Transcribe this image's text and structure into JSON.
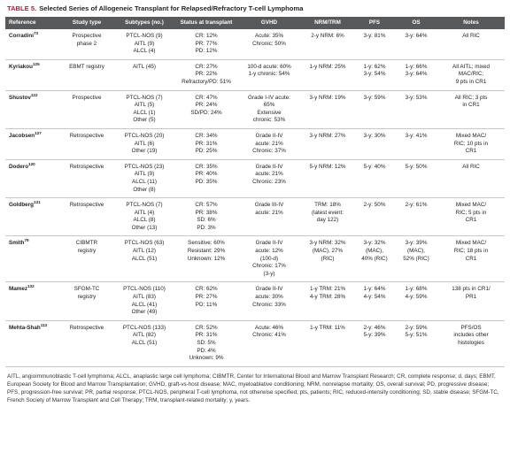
{
  "title": {
    "label": "TABLE 5.",
    "text": "Selected Series of Allogeneic Transplant for Relapsed/Refractory T-cell Lymphoma"
  },
  "table": {
    "columns": [
      "Reference",
      "Study type",
      "Subtypes (no.)",
      "Status at transplant",
      "GVHD",
      "NRM/TRM",
      "PFS",
      "OS",
      "Notes"
    ],
    "rows": [
      [
        {
          "name": "Corradini",
          "ref": "73"
        },
        [
          "Prospective",
          "phase 2"
        ],
        [
          "PTCL-NOS (9)",
          "AITL (9)",
          "ALCL (4)"
        ],
        [
          "CR: 12%",
          "PR: 77%",
          "PD: 12%"
        ],
        [
          "Acute: 35%",
          "Chronic: 50%"
        ],
        [
          "2-y NRM: 6%"
        ],
        [
          "3-y: 81%"
        ],
        [
          "3-y: 64%"
        ],
        [
          "All RIC"
        ]
      ],
      [
        {
          "name": "Kyriakou",
          "ref": "125"
        },
        [
          "EBMT registry"
        ],
        [
          "AITL (45)"
        ],
        [
          "CR: 27%",
          "PR: 22%",
          "Refractory/PD: 51%"
        ],
        [
          "100-d acute: 60%",
          "1-y chronic: 54%"
        ],
        [
          "1-y NRM: 25%"
        ],
        [
          "1-y: 62%",
          "3-y: 54%"
        ],
        [
          "1-y: 66%",
          "3-y: 64%"
        ],
        [
          "All AITL; mixed",
          "MAC/RIC;",
          "9 pts in CR1"
        ]
      ],
      [
        {
          "name": "Shustov",
          "ref": "122"
        },
        [
          "Prospective"
        ],
        [
          "PTCL-NOS (7)",
          "AITL (5)",
          "ALCL (1)",
          "Other (5)"
        ],
        [
          "CR: 47%",
          "PR: 24%",
          "SD/PD: 24%"
        ],
        [
          "Grade I-IV acute:",
          "65%",
          "Extensive",
          "chronic: 53%"
        ],
        [
          "3-y NRM: 19%"
        ],
        [
          "3-y: 59%"
        ],
        [
          "3-y: 53%"
        ],
        [
          "All RIC; 3 pts",
          "in CR1"
        ]
      ],
      [
        {
          "name": "Jacobsen",
          "ref": "127"
        },
        [
          "Retrospective"
        ],
        [
          "PTCL-NOS (20)",
          "AITL (6)",
          "Other (19)"
        ],
        [
          "CR: 34%",
          "PR: 31%",
          "PD: 25%"
        ],
        [
          "Grade II-IV",
          "acute: 21%",
          "Chronic: 37%"
        ],
        [
          "3-y NRM: 27%"
        ],
        [
          "3-y: 30%"
        ],
        [
          "3-y: 41%"
        ],
        [
          "Mixed MAC/",
          "RIC; 10 pts in",
          "CR1"
        ]
      ],
      [
        {
          "name": "Dodero",
          "ref": "120"
        },
        [
          "Retrospective"
        ],
        [
          "PTCL-NOS (23)",
          "AITL (9)",
          "ALCL (11)",
          "Other (8)"
        ],
        [
          "CR: 35%",
          "PR: 40%",
          "PD: 35%"
        ],
        [
          "Grade II-IV",
          "acute: 21%",
          "Chronic: 23%"
        ],
        [
          "5-y NRM: 12%"
        ],
        [
          "5-y: 40%"
        ],
        [
          "5-y: 50%"
        ],
        [
          "All RIC"
        ]
      ],
      [
        {
          "name": "Goldberg",
          "ref": "131"
        },
        [
          "Retrospective"
        ],
        [
          "PTCL-NOS (7)",
          "AITL (4)",
          "ALCL (8)",
          "Other (13)"
        ],
        [
          "CR: 57%",
          "PR: 38%",
          "SD: 6%",
          "PD: 3%"
        ],
        [
          "Grade III-IV",
          "acute: 21%"
        ],
        [
          "TRM: 18%",
          "(latest event:",
          "day 122)"
        ],
        [
          "2-y: 50%"
        ],
        [
          "2-y: 61%"
        ],
        [
          "Mixed MAC/",
          "RIC; 5 pts in",
          "CR1"
        ]
      ],
      [
        {
          "name": "Smith",
          "ref": "79"
        },
        [
          "CIBMTR",
          "registry"
        ],
        [
          "PTCL-NOS (63)",
          "AITL (12)",
          "ALCL (51)"
        ],
        [
          "Sensitive: 60%",
          "Resistant: 29%",
          "Unknown: 12%"
        ],
        [
          "Grade II-IV",
          "acute: 12%",
          "(100-d)",
          "Chronic: 17%",
          "(3-y)"
        ],
        [
          "3-y NRM: 32%",
          "(MAC), 27%",
          "(RIC)"
        ],
        [
          "3-y: 32%",
          "(MAC),",
          "40% (RIC)"
        ],
        [
          "3-y: 39%",
          "(MAC),",
          "52% (RIC)"
        ],
        [
          "Mixed MAC/",
          "RIC; 18 pts in",
          "CR1"
        ]
      ],
      [
        {
          "name": "Mamez",
          "ref": "132"
        },
        [
          "SFGM-TC",
          "registry"
        ],
        [
          "PTCL-NOS (110)",
          "AITL (83)",
          "ALCL (41)",
          "Other (49)"
        ],
        [
          "CR: 62%",
          "PR: 27%",
          "PD: 11%"
        ],
        [
          "Grade II-IV",
          "acute: 30%",
          "Chronic: 33%"
        ],
        [
          "1-y TRM: 21%",
          "4-y TRM: 28%"
        ],
        [
          "1-y: 64%",
          "4-y: 54%"
        ],
        [
          "1-y: 68%",
          "4-y: 59%"
        ],
        [
          "138 pts in CR1/",
          "PR1"
        ]
      ],
      [
        {
          "name": "Mehta-Shah",
          "ref": "113"
        },
        [
          "Retrospective"
        ],
        [
          "PTCL-NOS (133)",
          "AITL (82)",
          "ALCL (51)"
        ],
        [
          "CR: 52%",
          "PR: 31%",
          "SD: 5%",
          "PD: 4%",
          "Unknown: 9%"
        ],
        [
          "Acute: 46%",
          "Chronic: 41%"
        ],
        [
          "1-y TRM: 11%"
        ],
        [
          "2-y: 46%",
          "5-y: 39%"
        ],
        [
          "2-y: 59%",
          "5-y: 51%"
        ],
        [
          "PFS/OS",
          "includes other",
          "histologies"
        ]
      ]
    ]
  },
  "footnote": "AITL, angioimmunoblastic T-cell lymphoma; ALCL, anaplastic large cell lymphoma; CIBMTR, Center for International Blood and Marrow Transplant Research; CR, complete response; d, days; EBMT, European Society for Blood and Marrow Transplantation; GVHD, graft-vs-host disease; MAC, myeloablative conditioning; NRM, nonrelapse mortality; OS, overall survival; PD, progressive disease; PFS, progression-free survival; PR, partial response; PTCL-NOS, peripheral T-cell lymphoma, not otherwise specified; pts, patients; RIC, reduced-intensity conditioning; SD, stable disease; SFGM-TC, French Society of Marrow Transplant and Cell Therapy; TRM, transplant-related mortality; y, years."
}
